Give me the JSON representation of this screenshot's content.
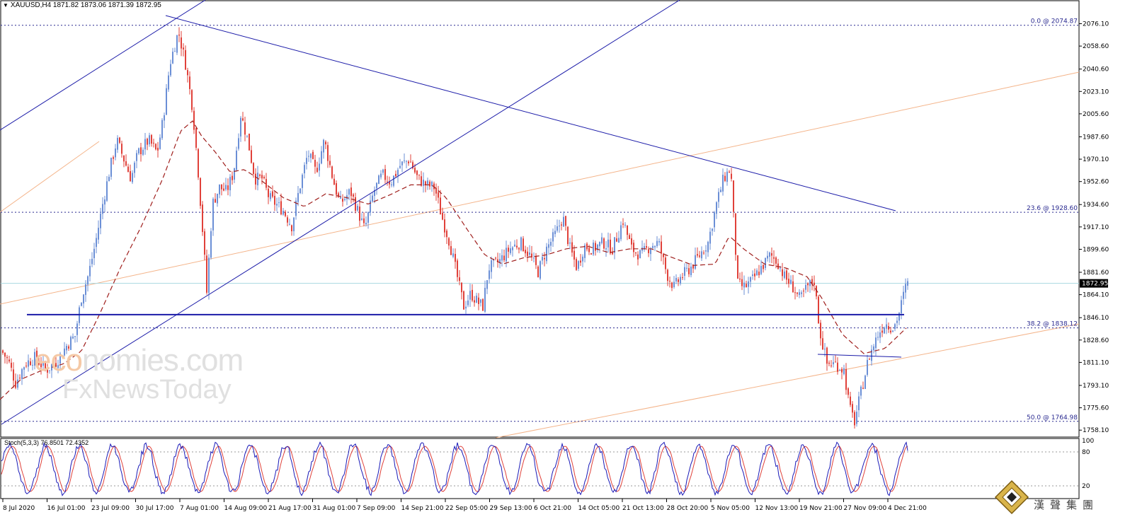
{
  "window": {
    "symbol_header": "XAUUSD,H4  1871.82 1873.06 1871.39 1872.95"
  },
  "price_axis": {
    "labels": [
      "2076.10",
      "2058.60",
      "2040.60",
      "2023.10",
      "2005.60",
      "1987.60",
      "1970.10",
      "1952.60",
      "1934.60",
      "1917.10",
      "1899.60",
      "1881.60",
      "1864.10",
      "1846.10",
      "1828.60",
      "1811.10",
      "1793.10",
      "1775.60",
      "1758.10"
    ],
    "current_price": "1872.95",
    "min": 1756,
    "max": 2088
  },
  "fibonacci": [
    {
      "label": "0.0 @ 2074.87",
      "price": 2074.87
    },
    {
      "label": "23.6 @ 1928.60",
      "price": 1928.6
    },
    {
      "label": "38.2 @ 1838.12",
      "price": 1838.12
    },
    {
      "label": "50.0 @ 1764.98",
      "price": 1764.98
    }
  ],
  "support_line_price": 1848.5,
  "time_axis": {
    "labels": [
      "8 Jul 2020",
      "16 Jul 01:00",
      "23 Jul 09:00",
      "30 Jul 17:00",
      "7 Aug 01:00",
      "14 Aug 09:00",
      "21 Aug 17:00",
      "31 Aug 01:00",
      "7 Sep 09:00",
      "14 Sep 21:00",
      "22 Sep 05:00",
      "29 Sep 13:00",
      "6 Oct 21:00",
      "14 Oct 05:00",
      "21 Oct 13:00",
      "28 Oct 20:00",
      "5 Nov 05:00",
      "12 Nov 13:00",
      "19 Nov 21:00",
      "27 Nov 09:00",
      "4 Dec 21:00"
    ]
  },
  "stochastic": {
    "label": "Stoch(5,3,3) 76.8501 72.4352",
    "levels": [
      "100",
      "80",
      "20"
    ]
  },
  "watermark": {
    "line1_accent": "eco",
    "line1_rest": "nomies.com",
    "line2": "FxNewsToday"
  },
  "brand": {
    "text": "漢聲集團"
  },
  "colors": {
    "bull_candle": "#6b8fd6",
    "bear_candle": "#e0413a",
    "trendline": "#1a1aa8",
    "ma": "#a0201e",
    "fib_line": "#2a2a90",
    "orange_channel": "#f4b48a",
    "stoch_main": "#1a1ab8",
    "stoch_signal": "#e0413a",
    "current_price_line": "#a8d8e0"
  },
  "chart_data": {
    "type": "candlestick",
    "title": "XAUUSD,H4",
    "ylim": [
      1756,
      2088
    ],
    "anchors": [
      [
        0,
        1822
      ],
      [
        12,
        1812
      ],
      [
        22,
        1795
      ],
      [
        35,
        1810
      ],
      [
        50,
        1815
      ],
      [
        65,
        1805
      ],
      [
        80,
        1812
      ],
      [
        95,
        1825
      ],
      [
        106,
        1832
      ],
      [
        115,
        1862
      ],
      [
        125,
        1880
      ],
      [
        135,
        1905
      ],
      [
        145,
        1935
      ],
      [
        155,
        1962
      ],
      [
        165,
        1985
      ],
      [
        175,
        1970
      ],
      [
        185,
        1955
      ],
      [
        195,
        1975
      ],
      [
        210,
        1985
      ],
      [
        222,
        1975
      ],
      [
        230,
        2000
      ],
      [
        240,
        2045
      ],
      [
        252,
        2070
      ],
      [
        262,
        2045
      ],
      [
        272,
        2010
      ],
      [
        280,
        1960
      ],
      [
        288,
        1900
      ],
      [
        292,
        1866
      ],
      [
        300,
        1935
      ],
      [
        310,
        1948
      ],
      [
        320,
        1945
      ],
      [
        330,
        1960
      ],
      [
        340,
        2005
      ],
      [
        350,
        1985
      ],
      [
        360,
        1955
      ],
      [
        370,
        1955
      ],
      [
        380,
        1940
      ],
      [
        390,
        1935
      ],
      [
        400,
        1930
      ],
      [
        412,
        1918
      ],
      [
        422,
        1945
      ],
      [
        435,
        1975
      ],
      [
        446,
        1960
      ],
      [
        458,
        1985
      ],
      [
        470,
        1955
      ],
      [
        480,
        1935
      ],
      [
        495,
        1945
      ],
      [
        505,
        1930
      ],
      [
        515,
        1915
      ],
      [
        528,
        1945
      ],
      [
        540,
        1958
      ],
      [
        552,
        1952
      ],
      [
        565,
        1965
      ],
      [
        578,
        1970
      ],
      [
        590,
        1955
      ],
      [
        602,
        1950
      ],
      [
        614,
        1948
      ],
      [
        624,
        1925
      ],
      [
        635,
        1905
      ],
      [
        645,
        1880
      ],
      [
        655,
        1855
      ],
      [
        665,
        1865
      ],
      [
        675,
        1858
      ],
      [
        682,
        1855
      ],
      [
        690,
        1885
      ],
      [
        705,
        1890
      ],
      [
        720,
        1900
      ],
      [
        735,
        1905
      ],
      [
        748,
        1895
      ],
      [
        760,
        1882
      ],
      [
        772,
        1900
      ],
      [
        785,
        1912
      ],
      [
        795,
        1925
      ],
      [
        805,
        1900
      ],
      [
        815,
        1885
      ],
      [
        825,
        1902
      ],
      [
        838,
        1900
      ],
      [
        852,
        1905
      ],
      [
        865,
        1900
      ],
      [
        880,
        1922
      ],
      [
        892,
        1900
      ],
      [
        905,
        1895
      ],
      [
        918,
        1902
      ],
      [
        930,
        1905
      ],
      [
        942,
        1880
      ],
      [
        952,
        1870
      ],
      [
        962,
        1878
      ],
      [
        975,
        1885
      ],
      [
        988,
        1895
      ],
      [
        1000,
        1905
      ],
      [
        1012,
        1935
      ],
      [
        1022,
        1955
      ],
      [
        1032,
        1963
      ],
      [
        1037,
        1915
      ],
      [
        1042,
        1872
      ],
      [
        1052,
        1870
      ],
      [
        1062,
        1875
      ],
      [
        1075,
        1885
      ],
      [
        1088,
        1895
      ],
      [
        1098,
        1890
      ],
      [
        1108,
        1878
      ],
      [
        1120,
        1870
      ],
      [
        1130,
        1860
      ],
      [
        1140,
        1870
      ],
      [
        1150,
        1875
      ],
      [
        1158,
        1835
      ],
      [
        1168,
        1810
      ],
      [
        1180,
        1810
      ],
      [
        1192,
        1805
      ],
      [
        1200,
        1775
      ],
      [
        1207,
        1765
      ],
      [
        1217,
        1790
      ],
      [
        1227,
        1815
      ],
      [
        1240,
        1833
      ],
      [
        1250,
        1842
      ],
      [
        1262,
        1838
      ],
      [
        1270,
        1850
      ],
      [
        1280,
        1872
      ]
    ],
    "ma_anchors": [
      [
        0,
        1782
      ],
      [
        30,
        1798
      ],
      [
        60,
        1805
      ],
      [
        90,
        1810
      ],
      [
        115,
        1820
      ],
      [
        140,
        1848
      ],
      [
        170,
        1885
      ],
      [
        200,
        1918
      ],
      [
        230,
        1955
      ],
      [
        255,
        1992
      ],
      [
        272,
        2000
      ],
      [
        285,
        1988
      ],
      [
        305,
        1975
      ],
      [
        325,
        1960
      ],
      [
        345,
        1962
      ],
      [
        370,
        1953
      ],
      [
        400,
        1940
      ],
      [
        430,
        1933
      ],
      [
        460,
        1943
      ],
      [
        490,
        1940
      ],
      [
        520,
        1935
      ],
      [
        550,
        1942
      ],
      [
        580,
        1950
      ],
      [
        610,
        1950
      ],
      [
        630,
        1940
      ],
      [
        660,
        1915
      ],
      [
        685,
        1895
      ],
      [
        710,
        1888
      ],
      [
        740,
        1893
      ],
      [
        770,
        1895
      ],
      [
        800,
        1900
      ],
      [
        830,
        1902
      ],
      [
        860,
        1897
      ],
      [
        890,
        1900
      ],
      [
        920,
        1900
      ],
      [
        950,
        1893
      ],
      [
        980,
        1887
      ],
      [
        1010,
        1888
      ],
      [
        1030,
        1910
      ],
      [
        1050,
        1900
      ],
      [
        1080,
        1888
      ],
      [
        1110,
        1885
      ],
      [
        1140,
        1878
      ],
      [
        1160,
        1862
      ],
      [
        1190,
        1833
      ],
      [
        1220,
        1818
      ],
      [
        1250,
        1822
      ],
      [
        1280,
        1838
      ]
    ]
  }
}
